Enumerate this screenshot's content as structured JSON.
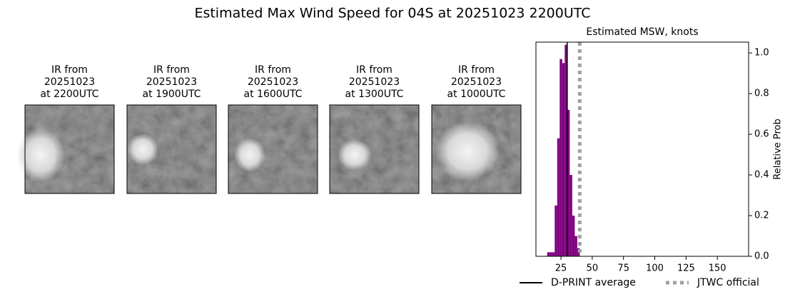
{
  "title": "Estimated Max Wind Speed for 04S at 20251023 2200UTC",
  "panels": [
    {
      "lines": [
        "IR from",
        "20251023",
        "at 2200UTC"
      ]
    },
    {
      "lines": [
        "IR from",
        "20251023",
        "at 1900UTC"
      ]
    },
    {
      "lines": [
        "IR from",
        "20251023",
        "at 1600UTC"
      ]
    },
    {
      "lines": [
        "IR from",
        "20251023",
        "at 1300UTC"
      ]
    },
    {
      "lines": [
        "IR from",
        "20251023",
        "at 1000UTC"
      ]
    }
  ],
  "chart_data": {
    "type": "histogram",
    "title": "Estimated MSW, knots",
    "y_label": "Relative Prob",
    "y_axis_side": "right",
    "color": "#800080",
    "bins": [
      14,
      16,
      18,
      20,
      22,
      24,
      26,
      28,
      30,
      32,
      34,
      36,
      38,
      40
    ],
    "values": [
      0.02,
      0.02,
      0.02,
      0.25,
      0.58,
      0.97,
      0.95,
      1.04,
      0.72,
      0.4,
      0.2,
      0.1,
      0.04
    ],
    "xlim": [
      5,
      175
    ],
    "xticks": [
      25,
      50,
      75,
      100,
      125,
      150
    ],
    "ylim": [
      0,
      1.053
    ],
    "yticks": [
      {
        "value": 0,
        "label": "0.0"
      },
      0.2,
      0.4,
      0.6,
      0.8,
      {
        "value": 1,
        "label": "1.0"
      }
    ],
    "reference_lines": [
      {
        "name": "D-PRINT average",
        "value": 30,
        "color": "#000000",
        "style": "solid"
      },
      {
        "name": "JTWC official",
        "value": 40,
        "color": "#a0a0a0",
        "style": "dotted"
      }
    ]
  }
}
